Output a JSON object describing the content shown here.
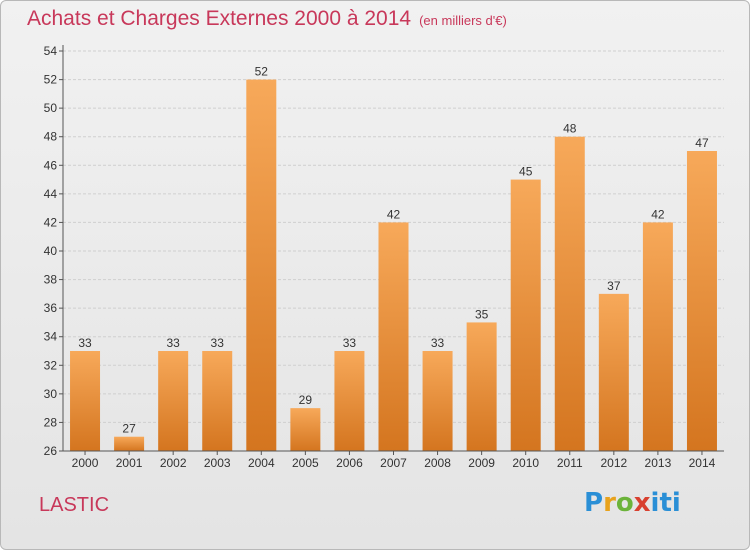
{
  "title": "Achats et Charges Externes 2000 à 2014",
  "subtitle": "(en milliers d'€)",
  "commune": "LASTIC",
  "logo": {
    "text": "Proxiti",
    "letters": [
      "P",
      "r",
      "o",
      "x",
      "iti"
    ]
  },
  "colors": {
    "bar_light": "#f7a95a",
    "bar_dark": "#d4751f",
    "title": "#c8385a"
  },
  "chart_data": {
    "type": "bar",
    "title": "Achats et Charges Externes 2000 à 2014",
    "xlabel": "",
    "ylabel": "",
    "categories": [
      "2000",
      "2001",
      "2002",
      "2003",
      "2004",
      "2005",
      "2006",
      "2007",
      "2008",
      "2009",
      "2010",
      "2011",
      "2012",
      "2013",
      "2014"
    ],
    "values": [
      33,
      27,
      33,
      33,
      52,
      29,
      33,
      42,
      33,
      35,
      45,
      48,
      37,
      42,
      47
    ],
    "ylim": [
      26,
      54
    ],
    "yticks": [
      26,
      28,
      30,
      32,
      34,
      36,
      38,
      40,
      42,
      44,
      46,
      48,
      50,
      52,
      54
    ],
    "grid": true,
    "legend": "none"
  }
}
